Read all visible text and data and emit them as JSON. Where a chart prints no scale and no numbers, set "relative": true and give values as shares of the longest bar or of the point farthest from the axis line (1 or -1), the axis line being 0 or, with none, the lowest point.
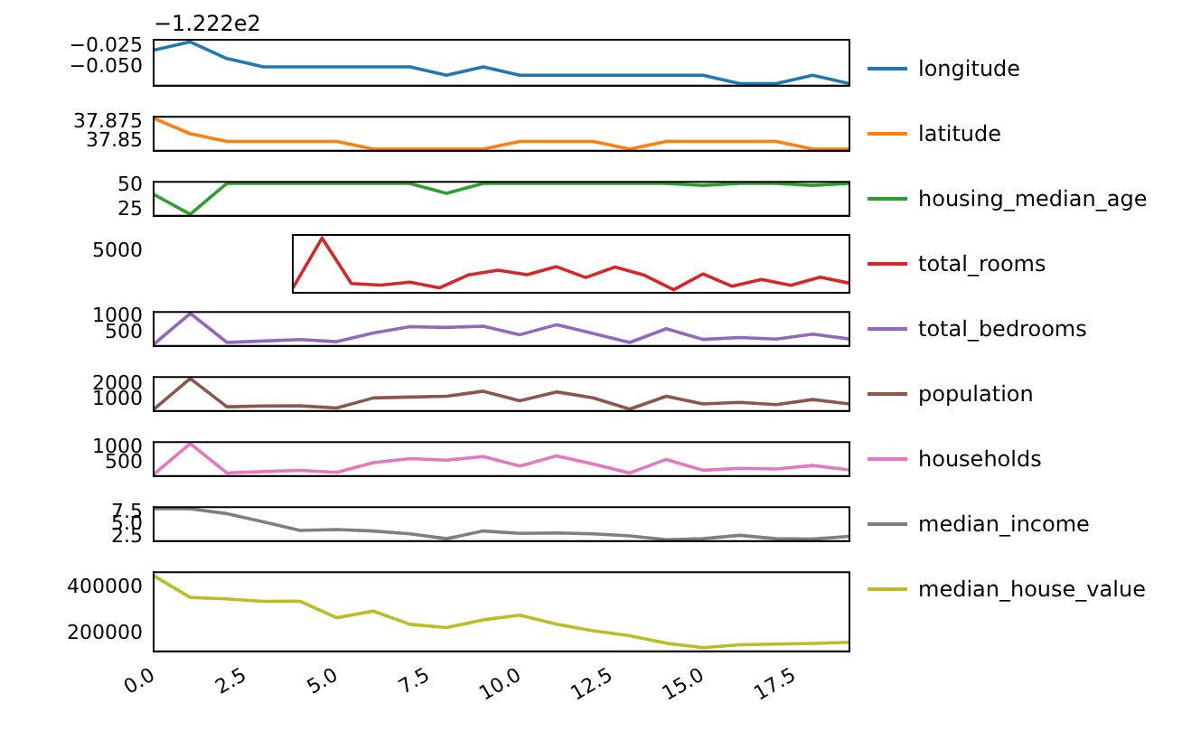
{
  "chart_data": [
    {
      "type": "line",
      "x": [
        0,
        1,
        2,
        3,
        4,
        5,
        6,
        7,
        8,
        9,
        10,
        11,
        12,
        13,
        14,
        15,
        16,
        17,
        18,
        19
      ],
      "xlim": [
        0,
        19
      ],
      "ylim": [
        -0.0725,
        -0.0175
      ],
      "yticks": [
        {
          "value": -0.025,
          "label": "−0.025"
        },
        {
          "value": -0.05,
          "label": "−0.050"
        }
      ],
      "annotations": [
        "−1.222e2"
      ],
      "legend": "right",
      "tick_labels": "y",
      "series": [
        {
          "name": "longitude",
          "color": "#1f77b4",
          "values": [
            -0.03,
            -0.02,
            -0.04,
            -0.05,
            -0.05,
            -0.05,
            -0.05,
            -0.05,
            -0.06,
            -0.05,
            -0.06,
            -0.06,
            -0.06,
            -0.06,
            -0.06,
            -0.06,
            -0.07,
            -0.07,
            -0.06,
            -0.07
          ]
        }
      ]
    },
    {
      "type": "line",
      "x": [
        0,
        1,
        2,
        3,
        4,
        5,
        6,
        7,
        8,
        9,
        10,
        11,
        12,
        13,
        14,
        15,
        16,
        17,
        18,
        19
      ],
      "xlim": [
        0,
        19
      ],
      "ylim": [
        37.838,
        37.882
      ],
      "yticks": [
        37.875,
        37.85
      ],
      "legend": "right",
      "tick_labels": "y",
      "series": [
        {
          "name": "latitude",
          "color": "#ff7f0e",
          "values": [
            37.88,
            37.86,
            37.85,
            37.85,
            37.85,
            37.85,
            37.84,
            37.84,
            37.84,
            37.84,
            37.85,
            37.85,
            37.85,
            37.84,
            37.85,
            37.85,
            37.85,
            37.85,
            37.84,
            37.84
          ]
        }
      ]
    },
    {
      "type": "line",
      "x": [
        0,
        1,
        2,
        3,
        4,
        5,
        6,
        7,
        8,
        9,
        10,
        11,
        12,
        13,
        14,
        15,
        16,
        17,
        18,
        19
      ],
      "xlim": [
        0,
        19
      ],
      "ylim": [
        19.45,
        53.55
      ],
      "yticks": [
        25,
        50
      ],
      "legend": "right",
      "tick_labels": "y",
      "series": [
        {
          "name": "housing_median_age",
          "color": "#2ca02c",
          "values": [
            41,
            21,
            52,
            52,
            52,
            52,
            52,
            52,
            42,
            52,
            52,
            52,
            52,
            52,
            52,
            50,
            52,
            52,
            50,
            52
          ]
        }
      ]
    },
    {
      "type": "line",
      "relative": true,
      "categories": [
        null,
        null,
        null,
        null,
        null,
        null,
        null,
        null,
        null,
        null,
        null,
        null,
        null,
        null,
        null,
        null,
        null,
        null,
        null,
        null
      ],
      "annotations": [
        "5000"
      ],
      "legend": "right",
      "tick_labels": false,
      "series": [
        {
          "name": "total_rooms",
          "color": "#d62728",
          "values": [
            0.029,
            1,
            0.12,
            0.09,
            0.145,
            0.035,
            0.287,
            0.376,
            0.29,
            0.446,
            0.235,
            0.438,
            0.28,
            0,
            0.304,
            0.066,
            0.198,
            0.083,
            0.241,
            0.126
          ]
        }
      ]
    },
    {
      "type": "line",
      "x": [
        0,
        1,
        2,
        3,
        4,
        5,
        6,
        7,
        8,
        9,
        10,
        11,
        12,
        13,
        14,
        15,
        16,
        17,
        18,
        19
      ],
      "xlim": [
        0,
        19
      ],
      "ylim": [
        80,
        1155
      ],
      "yticks": [
        1000,
        500
      ],
      "legend": "right",
      "tick_labels": "y",
      "series": [
        {
          "name": "total_bedrooms",
          "color": "#9467bd",
          "values": [
            130,
            1110,
            190,
            235,
            280,
            215,
            490,
            690,
            665,
            705,
            435,
            750,
            475,
            190,
            625,
            285,
            345,
            295,
            455,
            300
          ]
        }
      ]
    },
    {
      "type": "line",
      "x": [
        0,
        1,
        2,
        3,
        4,
        5,
        6,
        7,
        8,
        9,
        10,
        11,
        12,
        13,
        14,
        15,
        16,
        17,
        18,
        19
      ],
      "xlim": [
        0,
        19
      ],
      "ylim": [
        218,
        2505
      ],
      "yticks": [
        2000,
        1000
      ],
      "legend": "right",
      "tick_labels": "y",
      "series": [
        {
          "name": "population",
          "color": "#8c564b",
          "values": [
            320,
            2400,
            500,
            560,
            565,
            415,
            1095,
            1155,
            1205,
            1550,
            910,
            1505,
            1100,
            345,
            1210,
            695,
            795,
            650,
            990,
            690
          ]
        }
      ]
    },
    {
      "type": "line",
      "x": [
        0,
        1,
        2,
        3,
        4,
        5,
        6,
        7,
        8,
        9,
        10,
        11,
        12,
        13,
        14,
        15,
        16,
        17,
        18,
        19
      ],
      "xlim": [
        0,
        19
      ],
      "ylim": [
        75,
        1189
      ],
      "yticks": [
        1000,
        500
      ],
      "legend": "right",
      "tick_labels": "y",
      "series": [
        {
          "name": "households",
          "color": "#e377c2",
          "values": [
            125,
            1140,
            175,
            220,
            260,
            195,
            515,
            645,
            595,
            715,
            400,
            735,
            470,
            175,
            620,
            265,
            330,
            305,
            420,
            275
          ]
        }
      ]
    },
    {
      "type": "line",
      "x": [
        0,
        1,
        2,
        3,
        4,
        5,
        6,
        7,
        8,
        9,
        10,
        11,
        12,
        13,
        14,
        15,
        16,
        17,
        18,
        19
      ],
      "xlim": [
        0,
        19
      ],
      "ylim": [
        1.6,
        8.65
      ],
      "yticks": [
        {
          "value": 7.5,
          "label": "7.5"
        },
        {
          "value": 5,
          "label": "5.0"
        },
        {
          "value": 2.5,
          "label": "2.5"
        }
      ],
      "legend": "right",
      "tick_labels": "y",
      "series": [
        {
          "name": "median_income",
          "color": "#7f7f7f",
          "values": [
            8.3,
            8.3,
            7.3,
            5.6,
            3.8,
            4,
            3.7,
            3.1,
            2.1,
            3.7,
            3.2,
            3.3,
            3.1,
            2.7,
            1.9,
            2.1,
            2.8,
            2.1,
            2,
            2.6
          ]
        }
      ]
    },
    {
      "type": "line",
      "x": [
        0,
        1,
        2,
        3,
        4,
        5,
        6,
        7,
        8,
        9,
        10,
        11,
        12,
        13,
        14,
        15,
        16,
        17,
        18,
        19
      ],
      "xlim": [
        0,
        19
      ],
      "xticks": [
        {
          "value": 0,
          "label": "0.0"
        },
        {
          "value": 2.5,
          "label": "2.5"
        },
        {
          "value": 5,
          "label": "5.0"
        },
        {
          "value": 7.5,
          "label": "7.5"
        },
        {
          "value": 10,
          "label": "10.0"
        },
        {
          "value": 12.5,
          "label": "12.5"
        },
        {
          "value": 15,
          "label": "15.0"
        },
        {
          "value": 17.5,
          "label": "17.5"
        }
      ],
      "ylim": [
        124370,
        468230
      ],
      "yticks": [
        400000,
        200000
      ],
      "legend": "right",
      "series": [
        {
          "name": "median_house_value",
          "color": "#bcbd22",
          "values": [
            453000,
            358500,
            352000,
            341000,
            342000,
            270000,
            299000,
            241500,
            227000,
            261000,
            281500,
            242000,
            213500,
            191500,
            159000,
            140000,
            152500,
            155500,
            158500,
            163000
          ]
        }
      ]
    }
  ]
}
